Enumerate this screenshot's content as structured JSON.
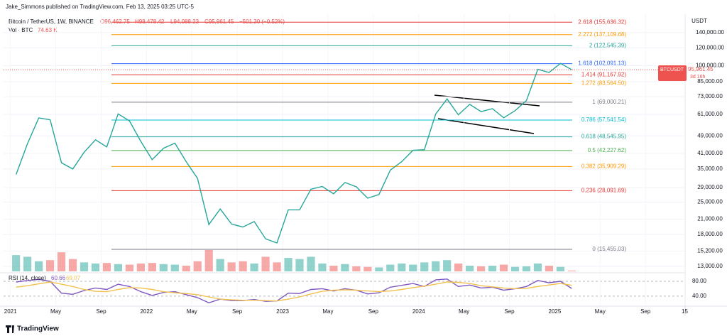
{
  "header": {
    "publisher": "Jake_Simmons published on TradingView.com, Feb 13, 2025 03:25 UTC-5",
    "footer": "TradingView"
  },
  "chart_data": {
    "type": "line",
    "title": "Bitcoin / TetherUS, 1W, BINANCE",
    "ohlc": {
      "open": "O96,462.75",
      "high": "H98,478.42",
      "low": "L94,088.23",
      "close": "C95,961.45",
      "change": "−501.30 (−0.52%)"
    },
    "volume_label": "Vol · BTC",
    "volume_value": "74.63 K",
    "currency": "USDT",
    "price_tag": {
      "symbol": "BTCUSDT",
      "price": "95,961.45",
      "countdown": "3d 16h"
    },
    "log_scale": true,
    "x": [
      "2021-01",
      "2021-02",
      "2021-03",
      "2021-04",
      "2021-05",
      "2021-06",
      "2021-07",
      "2021-08",
      "2021-09",
      "2021-10",
      "2021-11",
      "2021-12",
      "2022-01",
      "2022-02",
      "2022-03",
      "2022-04",
      "2022-05",
      "2022-06",
      "2022-07",
      "2022-08",
      "2022-09",
      "2022-10",
      "2022-11",
      "2022-12",
      "2023-01",
      "2023-02",
      "2023-03",
      "2023-04",
      "2023-05",
      "2023-06",
      "2023-07",
      "2023-08",
      "2023-09",
      "2023-10",
      "2023-11",
      "2023-12",
      "2024-01",
      "2024-02",
      "2024-03",
      "2024-04",
      "2024-05",
      "2024-06",
      "2024-07",
      "2024-08",
      "2024-09",
      "2024-10",
      "2024-11",
      "2024-12",
      "2025-01",
      "2025-02"
    ],
    "series": [
      {
        "name": "BTCUSDT",
        "color": "#26a69a",
        "values": [
          33100,
          45200,
          58800,
          57700,
          37300,
          35000,
          41500,
          47100,
          43800,
          61300,
          57000,
          46300,
          38500,
          43200,
          45500,
          37700,
          31800,
          19900,
          23300,
          20000,
          19400,
          20500,
          17200,
          16500,
          23100,
          23100,
          28500,
          29300,
          27200,
          30500,
          29200,
          26000,
          27000,
          34600,
          37700,
          42300,
          42600,
          61200,
          71300,
          60700,
          67500,
          62700,
          64600,
          58900,
          63300,
          70200,
          96400,
          93400,
          102400,
          95961.45
        ]
      },
      {
        "name": "Volume",
        "color": "#ef5350",
        "values": [
          1450,
          1300,
          900,
          1000,
          1700,
          1100,
          800,
          700,
          750,
          650,
          600,
          700,
          750,
          650,
          600,
          500,
          900,
          1900,
          1100,
          800,
          900,
          700,
          1300,
          800,
          1200,
          1100,
          1300,
          700,
          500,
          650,
          450,
          400,
          350,
          600,
          700,
          600,
          800,
          900,
          1000,
          700,
          500,
          450,
          500,
          600,
          400,
          450,
          700,
          500,
          400,
          75
        ]
      },
      {
        "name": "RSI (14, close)",
        "color": "#7e57c2",
        "values": [
          78,
          82,
          85,
          80,
          48,
          45,
          55,
          62,
          58,
          72,
          66,
          52,
          42,
          50,
          52,
          44,
          36,
          22,
          32,
          28,
          28,
          31,
          26,
          27,
          48,
          47,
          58,
          60,
          54,
          60,
          56,
          46,
          49,
          64,
          69,
          74,
          66,
          84,
          86,
          66,
          70,
          62,
          64,
          56,
          60,
          66,
          82,
          76,
          80,
          60.66
        ]
      },
      {
        "name": "MA",
        "color": "#f2c14e",
        "values": [
          64,
          68,
          73,
          78,
          72,
          66,
          58,
          53,
          52,
          58,
          63,
          62,
          58,
          52,
          49,
          47,
          44,
          38,
          32,
          30,
          29,
          29,
          28,
          27,
          32,
          38,
          46,
          53,
          56,
          57,
          56,
          54,
          52,
          54,
          58,
          63,
          67,
          72,
          78,
          77,
          74,
          68,
          65,
          62,
          60,
          61,
          66,
          70,
          74,
          69.07
        ]
      }
    ],
    "rsi_label": "RSI (14, close)",
    "rsi_value": "60.66",
    "rsi_ma_value": "69.07",
    "xlim": [
      "2020-12-13",
      "2025-12-16"
    ],
    "xticks": [
      {
        "value": "2021-01-01",
        "label": "2021"
      },
      {
        "value": "2021-05-01",
        "label": "May"
      },
      {
        "value": "2021-09-01",
        "label": "Sep"
      },
      {
        "value": "2022-01-01",
        "label": "2022"
      },
      {
        "value": "2022-05-01",
        "label": "May"
      },
      {
        "value": "2022-09-01",
        "label": "Sep"
      },
      {
        "value": "2023-01-01",
        "label": "2023"
      },
      {
        "value": "2023-05-01",
        "label": "May"
      },
      {
        "value": "2023-09-01",
        "label": "Sep"
      },
      {
        "value": "2024-01-01",
        "label": "2024"
      },
      {
        "value": "2024-05-01",
        "label": "May"
      },
      {
        "value": "2024-09-01",
        "label": "Sep"
      },
      {
        "value": "2025-01-01",
        "label": "2025"
      },
      {
        "value": "2025-05-01",
        "label": "May"
      },
      {
        "value": "2025-09-01",
        "label": "Sep"
      },
      {
        "value": "2025-12-15",
        "label": "15"
      }
    ],
    "ylim": [
      12360,
      168800
    ],
    "yticks": [
      {
        "value": 140000,
        "label": "140,000.00"
      },
      {
        "value": 120000,
        "label": "120,000.00"
      },
      {
        "value": 100000,
        "label": "100,000.00"
      },
      {
        "value": 85000,
        "label": "85,000.00"
      },
      {
        "value": 73000,
        "label": "73,000.00"
      },
      {
        "value": 61000,
        "label": "61,000.00"
      },
      {
        "value": 49000,
        "label": "49,000.00"
      },
      {
        "value": 41000,
        "label": "41,000.00"
      },
      {
        "value": 35000,
        "label": "35,000.00"
      },
      {
        "value": 29000,
        "label": "29,000.00"
      },
      {
        "value": 25000,
        "label": "25,000.00"
      },
      {
        "value": 21000,
        "label": "21,000.00"
      },
      {
        "value": 18000,
        "label": "18,000.00"
      },
      {
        "value": 15200,
        "label": "15,200.00"
      },
      {
        "value": 13000,
        "label": "13,000.00"
      }
    ],
    "rsi_ylim": [
      15,
      99
    ],
    "rsi_yticks": [
      {
        "value": 80,
        "label": "80.00"
      },
      {
        "value": 40,
        "label": "40.00"
      }
    ],
    "fib_levels": [
      {
        "value": 155636.32,
        "label": "2.618 (155,636.32)",
        "color": "#e53935"
      },
      {
        "value": 137109.68,
        "label": "2.272 (137,109.68)",
        "color": "#ff9800"
      },
      {
        "value": 122545.39,
        "label": "2 (122,545.39)",
        "color": "#26a69a"
      },
      {
        "value": 102091.13,
        "label": "1.618 (102,091.13)",
        "color": "#2962ff"
      },
      {
        "value": 91167.92,
        "label": "1.414 (91,167.92)",
        "color": "#e53935"
      },
      {
        "value": 83564.5,
        "label": "1.272 (83,564.50)",
        "color": "#ff9800"
      },
      {
        "value": 69000.21,
        "label": "1 (69,000.21)",
        "color": "#787b86"
      },
      {
        "value": 57541.54,
        "label": "0.786 (57,541.54)",
        "color": "#00bcd4"
      },
      {
        "value": 48545.95,
        "label": "0.618 (48,545.95)",
        "color": "#26a69a"
      },
      {
        "value": 42227.62,
        "label": "0.5 (42,227.62)",
        "color": "#4caf50"
      },
      {
        "value": 35909.29,
        "label": "0.382 (35,909.29)",
        "color": "#ff9800"
      },
      {
        "value": 28091.69,
        "label": "0.236 (28,091.69)",
        "color": "#e53935"
      },
      {
        "value": 15455.03,
        "label": "0 (15,455.03)",
        "color": "#787b86"
      }
    ]
  }
}
